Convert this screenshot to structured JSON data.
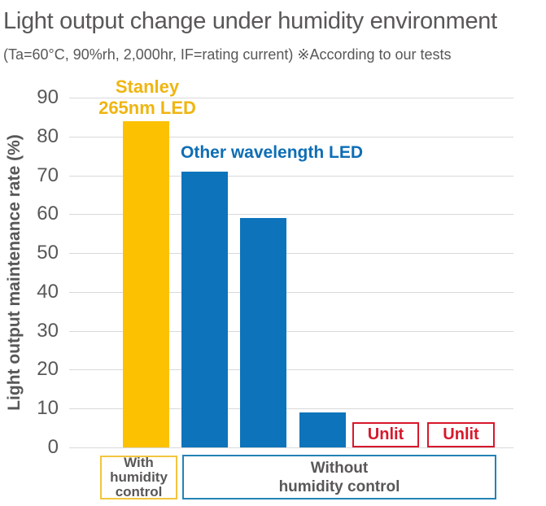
{
  "header": {
    "title": "Light output change under humidity environment",
    "subtitle": "(Ta=60°C, 90%rh, 2,000hr, IF=rating current) ※According to our tests"
  },
  "chart_data": {
    "type": "bar",
    "title": "Light output change under humidity environment",
    "subtitle": "(Ta=60°C, 90%rh, 2,000hr, IF=rating current) ※According to our tests",
    "ylabel": "Light output maintenance rate (%)",
    "ylim": [
      0,
      90
    ],
    "yticks": [
      0,
      10,
      20,
      30,
      40,
      50,
      60,
      70,
      80,
      90
    ],
    "grid": true,
    "legend_position": "inline-annotations",
    "series": [
      {
        "name": "Stanley 265nm LED",
        "color": "#FCC101",
        "label_lines": [
          "Stanley",
          "265nm LED"
        ],
        "label_color": "#EFB511",
        "values": [
          84
        ]
      },
      {
        "name": "Other wavelength LED",
        "color": "#0D73BB",
        "label_lines": [
          "Other wavelength LED"
        ],
        "label_color": "#0E6EB5",
        "values": [
          71,
          59,
          9
        ]
      }
    ],
    "bars": [
      {
        "series": "Stanley 265nm LED",
        "value": 84,
        "group": "With humidity control"
      },
      {
        "series": "Other wavelength LED",
        "value": 71,
        "group": "Without humidity control"
      },
      {
        "series": "Other wavelength LED",
        "value": 59,
        "group": "Without humidity control"
      },
      {
        "series": "Other wavelength LED",
        "value": 9,
        "group": "Without humidity control"
      }
    ],
    "unlit_markers": [
      {
        "label": "Unlit",
        "group": "Without humidity control"
      },
      {
        "label": "Unlit",
        "group": "Without humidity control"
      }
    ],
    "x_groups": [
      {
        "label_lines": [
          "With",
          "humidity",
          "control"
        ],
        "border_color": "#F2C53E"
      },
      {
        "label_lines": [
          "Without",
          "humidity control"
        ],
        "border_color": "#2383B4"
      }
    ]
  },
  "colors": {
    "text": "#595757",
    "gridline": "#D9D9D9",
    "unlit_red": "#D7182B",
    "stanley_yellow": "#FCC101",
    "other_blue": "#0D73BB",
    "background": "#FFFFFF"
  }
}
